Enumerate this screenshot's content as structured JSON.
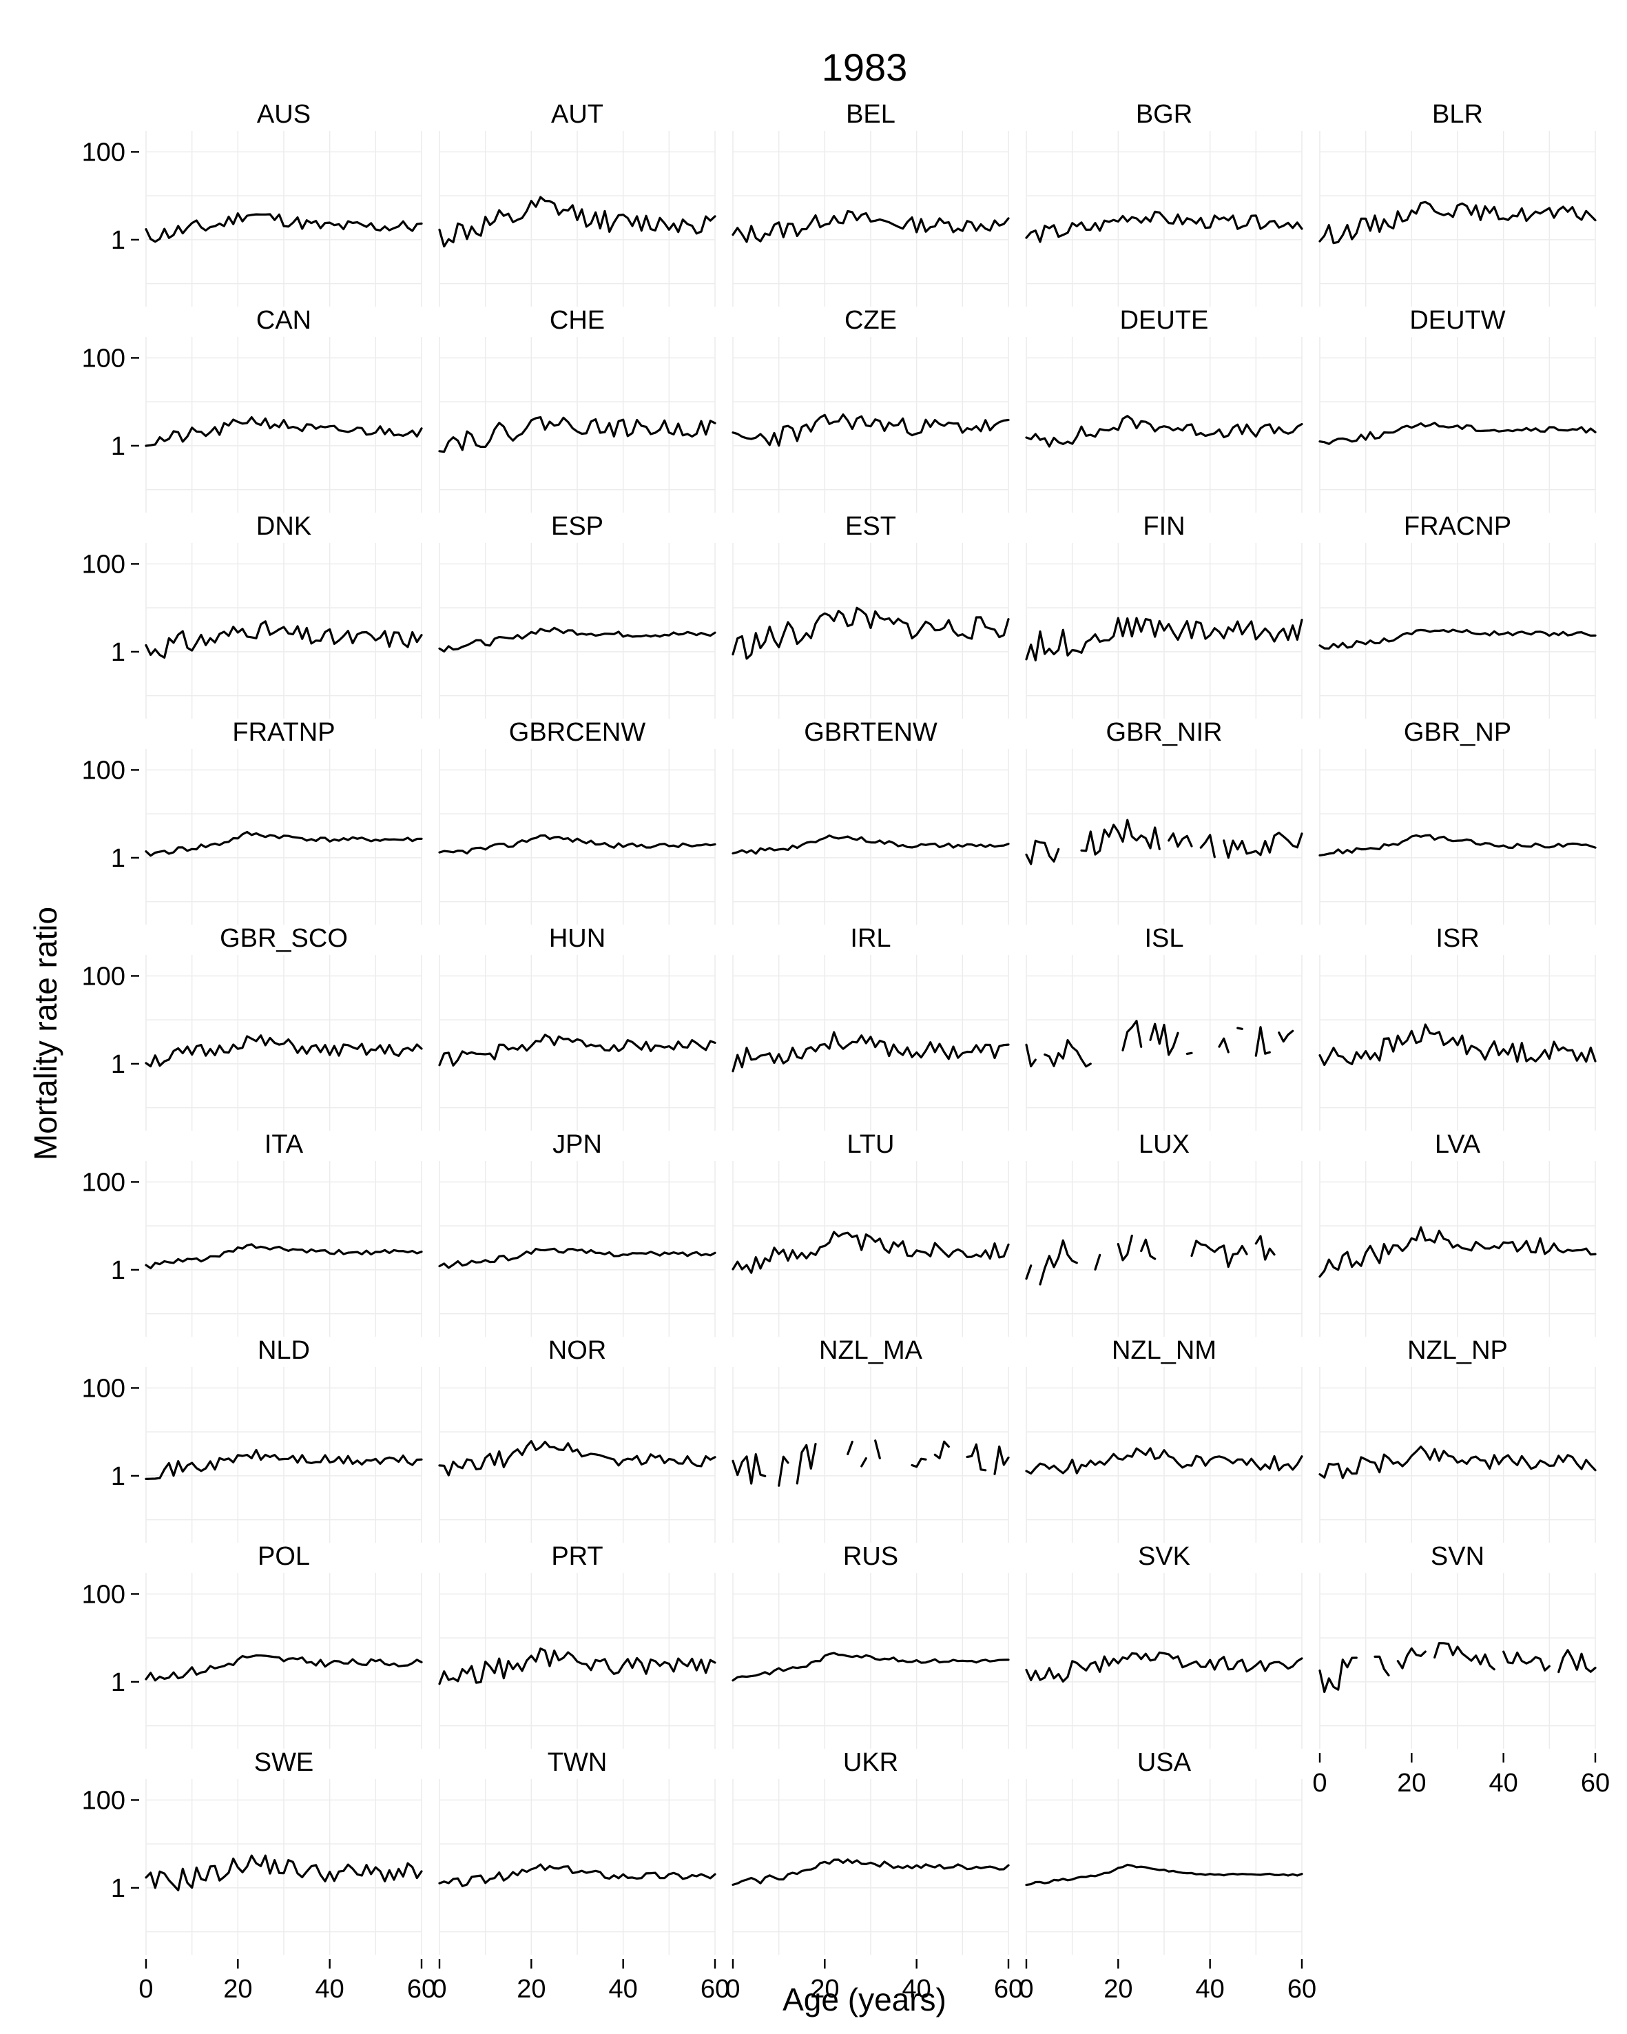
{
  "chart_data": {
    "type": "line",
    "title": "1983",
    "xlabel": "Age (years)",
    "ylabel": "Mortality rate ratio",
    "yscale": "log10",
    "xlim": [
      0,
      60
    ],
    "ylim": [
      0.03,
      300
    ],
    "x_ticks": [
      0,
      20,
      40,
      60
    ],
    "x_tick_labels": [
      "0",
      "20",
      "40",
      "60"
    ],
    "y_ticks": [
      1,
      100
    ],
    "y_tick_labels": [
      "1",
      "100"
    ],
    "grid": true,
    "legend": "none",
    "panels": [
      {
        "name": "AUS",
        "shape": "smooth",
        "peak": 4,
        "plateau": 2.0,
        "noise": 0.35,
        "seed": 11
      },
      {
        "name": "AUT",
        "shape": "smooth",
        "peak": 6,
        "plateau": 2.4,
        "noise": 0.55,
        "seed": 12
      },
      {
        "name": "BEL",
        "shape": "smooth",
        "peak": 3.5,
        "plateau": 2.2,
        "noise": 0.4,
        "seed": 13
      },
      {
        "name": "BGR",
        "shape": "smooth",
        "peak": 3.5,
        "plateau": 2.5,
        "noise": 0.35,
        "seed": 14
      },
      {
        "name": "BLR",
        "shape": "smooth",
        "peak": 6,
        "plateau": 3.8,
        "noise": 0.4,
        "seed": 15
      },
      {
        "name": "CAN",
        "shape": "smooth",
        "peak": 4,
        "plateau": 2.2,
        "noise": 0.3,
        "seed": 21
      },
      {
        "name": "CHE",
        "shape": "smooth",
        "peak": 3.5,
        "plateau": 2.5,
        "noise": 0.45,
        "seed": 22
      },
      {
        "name": "CZE",
        "shape": "smooth",
        "peak": 4,
        "plateau": 2.7,
        "noise": 0.45,
        "seed": 23
      },
      {
        "name": "DEUTE",
        "shape": "smooth",
        "peak": 3.5,
        "plateau": 2.2,
        "noise": 0.35,
        "seed": 24
      },
      {
        "name": "DEUTW",
        "shape": "smooth",
        "peak": 3.2,
        "plateau": 2.3,
        "noise": 0.15,
        "seed": 25
      },
      {
        "name": "DNK",
        "shape": "smooth",
        "peak": 3.5,
        "plateau": 2.0,
        "noise": 0.5,
        "seed": 31
      },
      {
        "name": "ESP",
        "shape": "smooth",
        "peak": 3.2,
        "plateau": 2.5,
        "noise": 0.15,
        "seed": 32
      },
      {
        "name": "EST",
        "shape": "smooth",
        "peak": 7,
        "plateau": 3.5,
        "noise": 0.6,
        "seed": 33
      },
      {
        "name": "FIN",
        "shape": "smooth",
        "peak": 4,
        "plateau": 3.0,
        "noise": 0.6,
        "seed": 34
      },
      {
        "name": "FRACNP",
        "shape": "smooth",
        "peak": 3.2,
        "plateau": 2.6,
        "noise": 0.12,
        "seed": 35
      },
      {
        "name": "FRATNP",
        "shape": "smooth",
        "peak": 3.5,
        "plateau": 2.6,
        "noise": 0.12,
        "seed": 41
      },
      {
        "name": "GBRCENW",
        "shape": "smooth",
        "peak": 3.2,
        "plateau": 1.9,
        "noise": 0.12,
        "seed": 42
      },
      {
        "name": "GBRTENW",
        "shape": "smooth",
        "peak": 3.2,
        "plateau": 1.9,
        "noise": 0.12,
        "seed": 43
      },
      {
        "name": "GBR_NIR",
        "shape": "gappy",
        "peak": 4,
        "plateau": 2.0,
        "noise": 0.7,
        "seed": 44
      },
      {
        "name": "GBR_NP",
        "shape": "smooth",
        "peak": 3.2,
        "plateau": 1.9,
        "noise": 0.12,
        "seed": 45
      },
      {
        "name": "GBR_SCO",
        "shape": "smooth",
        "peak": 3.5,
        "plateau": 2.0,
        "noise": 0.35,
        "seed": 51
      },
      {
        "name": "HUN",
        "shape": "smooth",
        "peak": 3.5,
        "plateau": 2.6,
        "noise": 0.3,
        "seed": 52
      },
      {
        "name": "IRL",
        "shape": "smooth",
        "peak": 3.5,
        "plateau": 2.0,
        "noise": 0.45,
        "seed": 53
      },
      {
        "name": "ISL",
        "shape": "sparse",
        "peak": 4,
        "plateau": 3.0,
        "noise": 0.9,
        "seed": 54
      },
      {
        "name": "ISR",
        "shape": "smooth",
        "peak": 5,
        "plateau": 1.9,
        "noise": 0.55,
        "seed": 55
      },
      {
        "name": "ITA",
        "shape": "smooth",
        "peak": 3.5,
        "plateau": 2.5,
        "noise": 0.12,
        "seed": 61
      },
      {
        "name": "JPN",
        "shape": "smooth",
        "peak": 3.0,
        "plateau": 2.3,
        "noise": 0.12,
        "seed": 62
      },
      {
        "name": "LTU",
        "shape": "smooth",
        "peak": 5.5,
        "plateau": 2.8,
        "noise": 0.45,
        "seed": 63
      },
      {
        "name": "LUX",
        "shape": "sparse",
        "peak": 4,
        "plateau": 2.5,
        "noise": 0.85,
        "seed": 64
      },
      {
        "name": "LVA",
        "shape": "smooth",
        "peak": 6,
        "plateau": 3.5,
        "noise": 0.45,
        "seed": 65
      },
      {
        "name": "NLD",
        "shape": "smooth",
        "peak": 3,
        "plateau": 2.2,
        "noise": 0.3,
        "seed": 71
      },
      {
        "name": "NOR",
        "shape": "smooth",
        "peak": 6,
        "plateau": 2.3,
        "noise": 0.35,
        "seed": 72
      },
      {
        "name": "NZL_MA",
        "shape": "sparse",
        "peak": 3.5,
        "plateau": 2.5,
        "noise": 1.0,
        "seed": 73
      },
      {
        "name": "NZL_NM",
        "shape": "smooth",
        "peak": 3.5,
        "plateau": 2.0,
        "noise": 0.4,
        "seed": 74
      },
      {
        "name": "NZL_NP",
        "shape": "smooth",
        "peak": 3.5,
        "plateau": 2.0,
        "noise": 0.4,
        "seed": 75
      },
      {
        "name": "POL",
        "shape": "smooth",
        "peak": 3.8,
        "plateau": 2.7,
        "noise": 0.2,
        "seed": 81
      },
      {
        "name": "PRT",
        "shape": "smooth",
        "peak": 3.8,
        "plateau": 2.3,
        "noise": 0.45,
        "seed": 82
      },
      {
        "name": "RUS",
        "shape": "smooth",
        "peak": 4.5,
        "plateau": 3.0,
        "noise": 0.1,
        "seed": 83
      },
      {
        "name": "SVK",
        "shape": "smooth",
        "peak": 4.5,
        "plateau": 2.5,
        "noise": 0.4,
        "seed": 84
      },
      {
        "name": "SVN",
        "shape": "gappy",
        "peak": 5,
        "plateau": 3.0,
        "noise": 0.6,
        "seed": 85
      },
      {
        "name": "SWE",
        "shape": "smooth",
        "peak": 4,
        "plateau": 2.2,
        "noise": 0.5,
        "seed": 91
      },
      {
        "name": "TWN",
        "shape": "smooth",
        "peak": 3.0,
        "plateau": 1.9,
        "noise": 0.2,
        "seed": 92
      },
      {
        "name": "UKR",
        "shape": "smooth",
        "peak": 4.5,
        "plateau": 3.0,
        "noise": 0.15,
        "seed": 93
      },
      {
        "name": "USA",
        "shape": "smooth",
        "peak": 3.2,
        "plateau": 2.0,
        "noise": 0.05,
        "seed": 94
      }
    ]
  }
}
